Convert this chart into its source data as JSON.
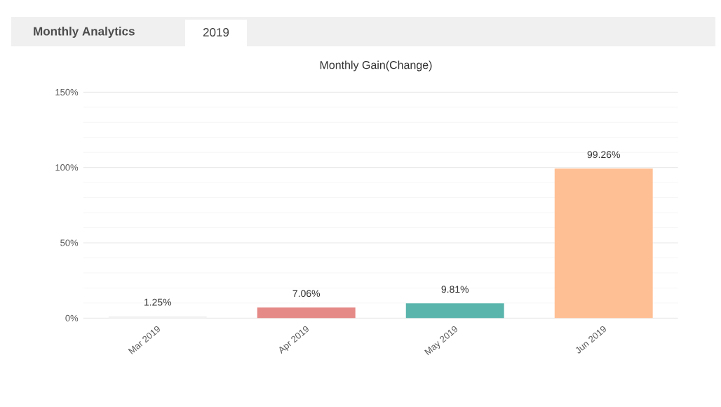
{
  "chart_data": {
    "type": "bar",
    "title": "Monthly Gain(Change)",
    "annotations": [
      "Monthly Analytics",
      "2019"
    ],
    "categories": [
      "Mar 2019",
      "Apr 2019",
      "May 2019",
      "Jun 2019"
    ],
    "values": [
      1.25,
      7.06,
      9.81,
      99.26
    ],
    "colors": [
      "#f2f2f2",
      "#e58a87",
      "#5ab5ad",
      "#ffbf94"
    ],
    "value_labels": [
      "1.25%",
      "7.06%",
      "9.81%",
      "99.26%"
    ],
    "ylim": [
      0,
      150
    ],
    "yticks": [
      {
        "value": 0,
        "label": "0%"
      },
      {
        "value": 50,
        "label": "50%"
      },
      {
        "value": 100,
        "label": "100%"
      },
      {
        "value": 150,
        "label": "150%"
      }
    ],
    "grid": "y"
  }
}
